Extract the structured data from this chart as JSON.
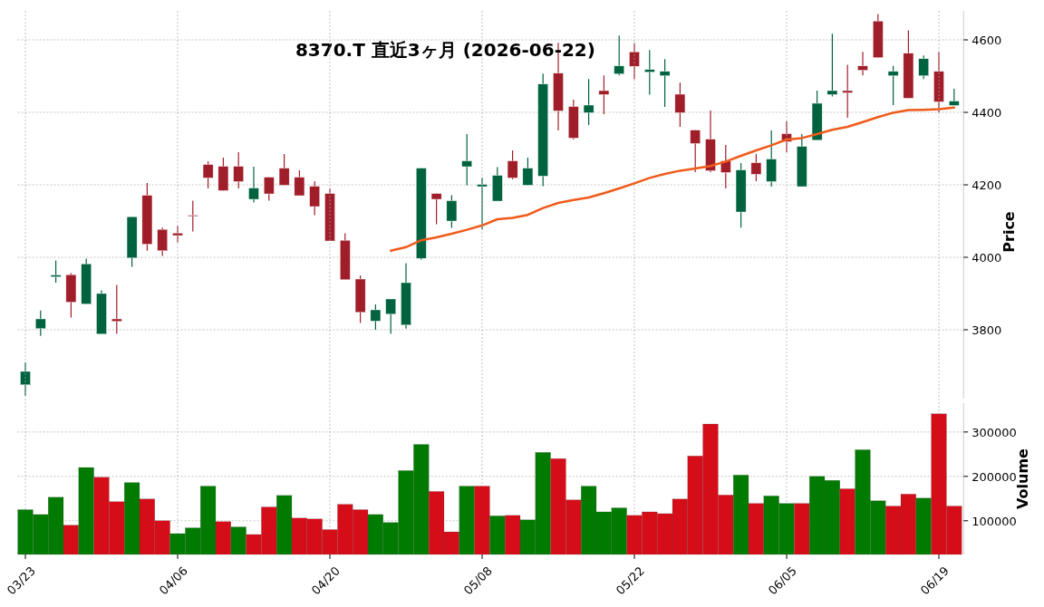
{
  "chart_data": [
    {
      "type": "candlestick",
      "title": "8370.T  直近3ヶ月  (2026-06-22)",
      "ylabel": "Price",
      "categories": [
        null,
        null,
        null,
        null,
        null,
        null,
        null,
        null,
        null,
        null,
        null,
        null,
        null,
        null,
        null,
        null,
        null,
        null,
        null,
        null,
        null,
        null,
        null,
        null,
        null,
        null,
        null,
        null,
        null,
        null,
        null,
        null,
        null,
        null,
        null,
        null,
        null,
        null,
        null,
        null,
        null,
        null,
        null,
        null,
        null,
        null,
        null,
        null,
        null,
        null,
        null,
        null,
        null,
        null,
        null,
        null,
        null,
        null,
        null,
        null,
        null,
        null
      ],
      "ohlc": [
        [
          3648,
          3710,
          3618,
          3685
        ],
        [
          3803,
          3853,
          3783,
          3830
        ],
        [
          3946,
          3991,
          3930,
          3951
        ],
        [
          3952,
          3956,
          3834,
          3876
        ],
        [
          3871,
          3996,
          3871,
          3982
        ],
        [
          3788,
          3909,
          3788,
          3900
        ],
        [
          3830,
          3924,
          3789,
          3823
        ],
        [
          3998,
          4112,
          3974,
          4112
        ],
        [
          4171,
          4205,
          4018,
          4036
        ],
        [
          4077,
          4082,
          4004,
          4018
        ],
        [
          4067,
          4086,
          4041,
          4060
        ],
        [
          4116,
          4156,
          4071,
          4113
        ],
        [
          4256,
          4265,
          4190,
          4219
        ],
        [
          4251,
          4275,
          4184,
          4184
        ],
        [
          4251,
          4290,
          4190,
          4209
        ],
        [
          4160,
          4250,
          4151,
          4191
        ],
        [
          4221,
          4221,
          4156,
          4175
        ],
        [
          4246,
          4285,
          4199,
          4199
        ],
        [
          4221,
          4240,
          4170,
          4170
        ],
        [
          4196,
          4210,
          4116,
          4140
        ],
        [
          4176,
          4190,
          4045,
          4045
        ],
        [
          4047,
          4066,
          3938,
          3938
        ],
        [
          3940,
          3950,
          3819,
          3848
        ],
        [
          3824,
          3870,
          3800,
          3855
        ],
        [
          3843,
          3885,
          3789,
          3885
        ],
        [
          3813,
          3984,
          3803,
          3930
        ],
        [
          3997,
          4246,
          3993,
          4246
        ],
        [
          4176,
          4176,
          4091,
          4160
        ],
        [
          4100,
          4171,
          4081,
          4156
        ],
        [
          4250,
          4340,
          4199,
          4266
        ],
        [
          4195,
          4220,
          4077,
          4201
        ],
        [
          4155,
          4249,
          4155,
          4226
        ],
        [
          4266,
          4295,
          4215,
          4219
        ],
        [
          4199,
          4275,
          4199,
          4246
        ],
        [
          4224,
          4507,
          4196,
          4478
        ],
        [
          4508,
          4592,
          4350,
          4404
        ],
        [
          4416,
          4435,
          4325,
          4329
        ],
        [
          4399,
          4492,
          4365,
          4420
        ],
        [
          4460,
          4502,
          4395,
          4449
        ],
        [
          4506,
          4612,
          4502,
          4528
        ],
        [
          4567,
          4591,
          4491,
          4527
        ],
        [
          4511,
          4572,
          4449,
          4518
        ],
        [
          4501,
          4547,
          4415,
          4513
        ],
        [
          4450,
          4482,
          4360,
          4399
        ],
        [
          4351,
          4351,
          4235,
          4314
        ],
        [
          4326,
          4405,
          4235,
          4239
        ],
        [
          4266,
          4310,
          4190,
          4234
        ],
        [
          4125,
          4260,
          4082,
          4241
        ],
        [
          4261,
          4285,
          4210,
          4229
        ],
        [
          4209,
          4350,
          4195,
          4271
        ],
        [
          4341,
          4375,
          4290,
          4319
        ],
        [
          4195,
          4340,
          4195,
          4306
        ],
        [
          4323,
          4460,
          4323,
          4425
        ],
        [
          4449,
          4617,
          4444,
          4460
        ],
        [
          4460,
          4531,
          4385,
          4454
        ],
        [
          4528,
          4567,
          4502,
          4516
        ],
        [
          4652,
          4671,
          4551,
          4551
        ],
        [
          4501,
          4528,
          4420,
          4513
        ],
        [
          4563,
          4626,
          4439,
          4439
        ],
        [
          4501,
          4557,
          4492,
          4548
        ],
        [
          4513,
          4566,
          4400,
          4429
        ],
        [
          4419,
          4465,
          4419,
          4431
        ]
      ],
      "colors": [
        "#006340",
        "#006340",
        "#006340",
        "#a01e2a",
        "#006340",
        "#006340",
        "#a01e2a",
        "#006340",
        "#a01e2a",
        "#a01e2a",
        "#a01e2a",
        "#a01e2a",
        "#a01e2a",
        "#a01e2a",
        "#a01e2a",
        "#006340",
        "#a01e2a",
        "#a01e2a",
        "#a01e2a",
        "#a01e2a",
        "#a01e2a",
        "#a01e2a",
        "#a01e2a",
        "#006340",
        "#006340",
        "#006340",
        "#006340",
        "#a01e2a",
        "#006340",
        "#006340",
        "#006340",
        "#006340",
        "#a01e2a",
        "#006340",
        "#006340",
        "#a01e2a",
        "#a01e2a",
        "#006340",
        "#a01e2a",
        "#006340",
        "#a01e2a",
        "#006340",
        "#006340",
        "#a01e2a",
        "#a01e2a",
        "#a01e2a",
        "#a01e2a",
        "#006340",
        "#a01e2a",
        "#006340",
        "#a01e2a",
        "#006340",
        "#006340",
        "#006340",
        "#a01e2a",
        "#a01e2a",
        "#a01e2a",
        "#006340",
        "#a01e2a",
        "#006340",
        "#a01e2a",
        "#006340"
      ],
      "series": [
        {
          "type": "line",
          "color": "#f05a1a",
          "values": [
            null,
            null,
            null,
            null,
            null,
            null,
            null,
            null,
            null,
            null,
            null,
            null,
            null,
            null,
            null,
            null,
            null,
            null,
            null,
            null,
            null,
            null,
            null,
            null,
            4018,
            4028,
            4047,
            4055,
            4065,
            4076,
            4088,
            4105,
            4109,
            4117,
            4136,
            4150,
            4158,
            4165,
            4177,
            4190,
            4204,
            4219,
            4230,
            4239,
            4245,
            4252,
            4264,
            4280,
            4295,
            4309,
            4325,
            4329,
            4340,
            4352,
            4360,
            4373,
            4387,
            4399,
            4406,
            4407,
            4409,
            4413
          ]
        }
      ],
      "ylim": [
        3610,
        4680
      ],
      "yticks": [
        3800,
        4000,
        4200,
        4400,
        4600
      ],
      "grid": true,
      "tick_labels": "y"
    },
    {
      "type": "bar",
      "ylabel": "Volume",
      "categories": [
        "03/23",
        null,
        null,
        null,
        null,
        null,
        null,
        null,
        null,
        null,
        "04/06",
        null,
        null,
        null,
        null,
        null,
        null,
        null,
        null,
        null,
        "04/20",
        null,
        null,
        null,
        null,
        null,
        null,
        null,
        null,
        null,
        "05/08",
        null,
        null,
        null,
        null,
        null,
        null,
        null,
        null,
        null,
        "05/22",
        null,
        null,
        null,
        null,
        null,
        null,
        null,
        null,
        null,
        "06/05",
        null,
        null,
        null,
        null,
        null,
        null,
        null,
        null,
        null,
        "06/19",
        null
      ],
      "values": [
        125000,
        114000,
        153000,
        90000,
        220000,
        198000,
        143000,
        186000,
        149000,
        100000,
        71000,
        84000,
        178000,
        98000,
        86000,
        69000,
        131000,
        157000,
        106000,
        104000,
        80000,
        137000,
        125000,
        114000,
        96000,
        213000,
        272000,
        166000,
        75000,
        178000,
        178000,
        111000,
        112000,
        102000,
        254000,
        240000,
        147000,
        178000,
        120000,
        129000,
        112000,
        120000,
        116000,
        149000,
        246000,
        318000,
        158000,
        203000,
        139000,
        156000,
        139000,
        139000,
        200000,
        191000,
        172000,
        260000,
        145000,
        133000,
        160000,
        151000,
        341000,
        133000
      ],
      "colors": [
        "#007a00",
        "#007a00",
        "#007a00",
        "#d40d19",
        "#007a00",
        "#d40d19",
        "#d40d19",
        "#007a00",
        "#d40d19",
        "#d40d19",
        "#007a00",
        "#007a00",
        "#007a00",
        "#d40d19",
        "#007a00",
        "#d40d19",
        "#d40d19",
        "#007a00",
        "#d40d19",
        "#d40d19",
        "#d40d19",
        "#d40d19",
        "#d40d19",
        "#007a00",
        "#007a00",
        "#007a00",
        "#007a00",
        "#d40d19",
        "#d40d19",
        "#007a00",
        "#d40d19",
        "#007a00",
        "#d40d19",
        "#007a00",
        "#007a00",
        "#d40d19",
        "#d40d19",
        "#007a00",
        "#007a00",
        "#007a00",
        "#d40d19",
        "#d40d19",
        "#d40d19",
        "#d40d19",
        "#d40d19",
        "#d40d19",
        "#d40d19",
        "#007a00",
        "#d40d19",
        "#007a00",
        "#007a00",
        "#d40d19",
        "#007a00",
        "#007a00",
        "#d40d19",
        "#007a00",
        "#007a00",
        "#d40d19",
        "#d40d19",
        "#007a00",
        "#d40d19",
        "#d40d19"
      ],
      "ylim": [
        24000,
        365000
      ],
      "yticks": [
        100000,
        200000,
        300000
      ],
      "grid": true
    }
  ]
}
